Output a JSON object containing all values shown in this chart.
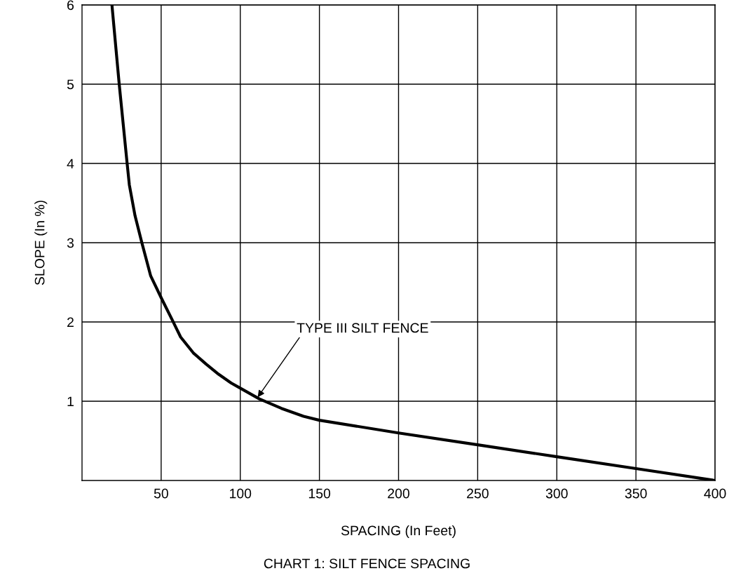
{
  "chart_data": {
    "type": "line",
    "title": "CHART 1: SILT FENCE SPACING",
    "xlabel": "SPACING (In Feet)",
    "ylabel": "SLOPE (In %)",
    "series": [
      {
        "color": "#000000",
        "x": [
          18.9,
          23.5,
          28.5,
          29.9,
          33.5,
          37.8,
          43.4,
          50.4,
          57.4,
          62.3,
          70.3,
          78.3,
          86.3,
          94.2,
          100.4,
          112,
          126,
          140,
          150,
          200,
          250,
          300,
          350,
          400
        ],
        "values": [
          6.0,
          5.0,
          4.0,
          3.73,
          3.34,
          3.0,
          2.58,
          2.29,
          2.01,
          1.81,
          1.61,
          1.47,
          1.34,
          1.23,
          1.16,
          1.03,
          0.91,
          0.81,
          0.76,
          0.6,
          0.45,
          0.3,
          0.15,
          0
        ]
      }
    ],
    "annotations": [
      {
        "text": "TYPE III SILT FENCE",
        "x": 111,
        "y": 1.05
      }
    ],
    "xlim": [
      0,
      400
    ],
    "xticks": [
      50,
      100,
      150,
      200,
      250,
      300,
      350,
      400
    ],
    "ylim": [
      0,
      6
    ],
    "yticks": [
      1,
      2,
      3,
      4,
      5,
      6
    ],
    "grid": true,
    "marker": "none",
    "line_style": "solid"
  }
}
